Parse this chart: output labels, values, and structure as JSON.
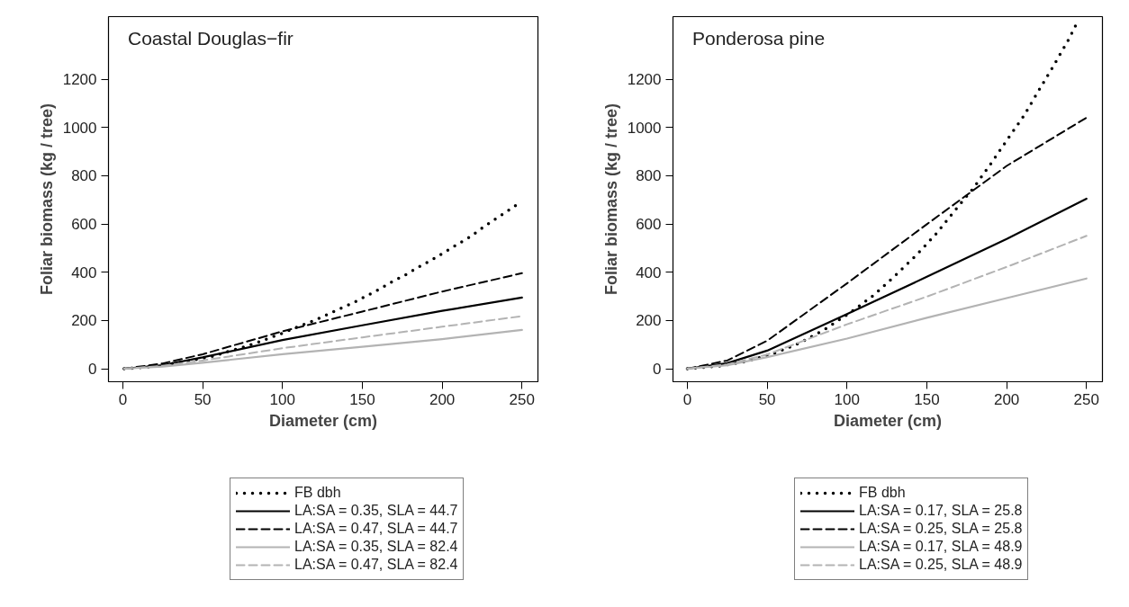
{
  "chart_data": [
    {
      "type": "line",
      "title": "Coastal Douglas−fir",
      "xlabel": "Diameter (cm)",
      "ylabel": "Foliar biomass (kg / tree)",
      "xlim": [
        -9,
        260
      ],
      "ylim": [
        -54,
        1460
      ],
      "xticks": [
        0,
        50,
        100,
        150,
        200,
        250
      ],
      "yticks": [
        0,
        200,
        400,
        600,
        800,
        1000,
        1200
      ],
      "grid": false,
      "legend": "bottom",
      "marker": "none",
      "series": [
        {
          "name": "FB dbh",
          "color": "#000000",
          "line_style": "dotted",
          "x": [
            0.8,
            10,
            19.2,
            28.5,
            38.1,
            47.7,
            56.7,
            65.6,
            74.6,
            83.5,
            92.1,
            101,
            109.6,
            118.3,
            126.9,
            135.6,
            144.2,
            152.3,
            160.8,
            168.8,
            177.3,
            185.4,
            193.5,
            201.5,
            209.2,
            217.3,
            225,
            232.7,
            240.8,
            248.5
          ],
          "values": [
            0,
            4,
            9,
            19,
            28,
            41,
            52,
            71,
            88,
            107,
            128,
            150,
            174,
            196,
            221,
            248,
            273,
            301,
            330,
            361,
            390,
            422,
            451,
            483,
            514,
            546,
            583,
            618,
            653,
            688
          ]
        },
        {
          "name": "LA:SA = 0.35, SLA = 44.7",
          "color": "#000000",
          "line_style": "solid",
          "x": [
            0.8,
            25,
            50,
            100,
            150,
            200,
            250
          ],
          "values": [
            0,
            15,
            47,
            119,
            180,
            240,
            295
          ]
        },
        {
          "name": "LA:SA = 0.47, SLA = 44.7",
          "color": "#000000",
          "line_style": "dashed",
          "x": [
            0.8,
            25,
            50,
            100,
            150,
            200,
            250
          ],
          "values": [
            0,
            22,
            60,
            155,
            237,
            320,
            396
          ]
        },
        {
          "name": "LA:SA = 0.35, SLA = 82.4",
          "color": "#b3b3b3",
          "line_style": "solid",
          "x": [
            0.8,
            25,
            50,
            100,
            150,
            200,
            250
          ],
          "values": [
            0,
            9,
            25,
            60,
            91,
            123,
            161
          ]
        },
        {
          "name": "LA:SA = 0.47, SLA = 82.4",
          "color": "#b3b3b3",
          "line_style": "dashed",
          "x": [
            0.8,
            25,
            50,
            100,
            150,
            200,
            250
          ],
          "values": [
            0,
            12,
            34,
            85,
            130,
            174,
            218
          ]
        }
      ]
    },
    {
      "type": "line",
      "title": "Ponderosa pine",
      "xlabel": "Diameter (cm)",
      "ylabel": "Foliar biomass (kg / tree)",
      "xlim": [
        -9,
        260
      ],
      "ylim": [
        -54,
        1460
      ],
      "xticks": [
        0,
        50,
        100,
        150,
        200,
        250
      ],
      "yticks": [
        0,
        200,
        400,
        600,
        800,
        1000,
        1200
      ],
      "grid": false,
      "legend": "bottom",
      "marker": "none",
      "series": [
        {
          "name": "FB dbh",
          "color": "#000000",
          "line_style": "dotted",
          "x": [
            0,
            18.7,
            36.5,
            54.2,
            70.9,
            86.8,
            102.1,
            116.8,
            130.5,
            143.6,
            155.9,
            167.8,
            179.3,
            190.2,
            200.6,
            210.7,
            220.4,
            229.7,
            238.9,
            243.4
          ],
          "values": [
            0,
            10,
            29,
            63,
            108,
            166,
            233,
            305,
            388,
            472,
            560,
            658,
            750,
            851,
            952,
            1048,
            1157,
            1260,
            1366,
            1426
          ]
        },
        {
          "name": "LA:SA = 0.17, SLA = 25.8",
          "color": "#000000",
          "line_style": "solid",
          "x": [
            0,
            25,
            50,
            100,
            150,
            200,
            250
          ],
          "values": [
            0,
            23,
            75,
            227,
            381,
            538,
            705
          ]
        },
        {
          "name": "LA:SA = 0.25, SLA = 25.8",
          "color": "#000000",
          "line_style": "dashed",
          "x": [
            0,
            25,
            50,
            100,
            150,
            200,
            250
          ],
          "values": [
            0,
            34,
            116,
            354,
            599,
            841,
            1041
          ]
        },
        {
          "name": "LA:SA = 0.17, SLA = 48.9",
          "color": "#b3b3b3",
          "line_style": "solid",
          "x": [
            0,
            25,
            50,
            100,
            150,
            200,
            250
          ],
          "values": [
            0,
            14,
            48,
            125,
            211,
            293,
            374
          ]
        },
        {
          "name": "LA:SA = 0.25, SLA = 48.9",
          "color": "#b3b3b3",
          "line_style": "dashed",
          "x": [
            0,
            25,
            50,
            100,
            150,
            200,
            250
          ],
          "values": [
            0,
            18,
            59,
            184,
            299,
            422,
            551
          ]
        }
      ]
    }
  ]
}
